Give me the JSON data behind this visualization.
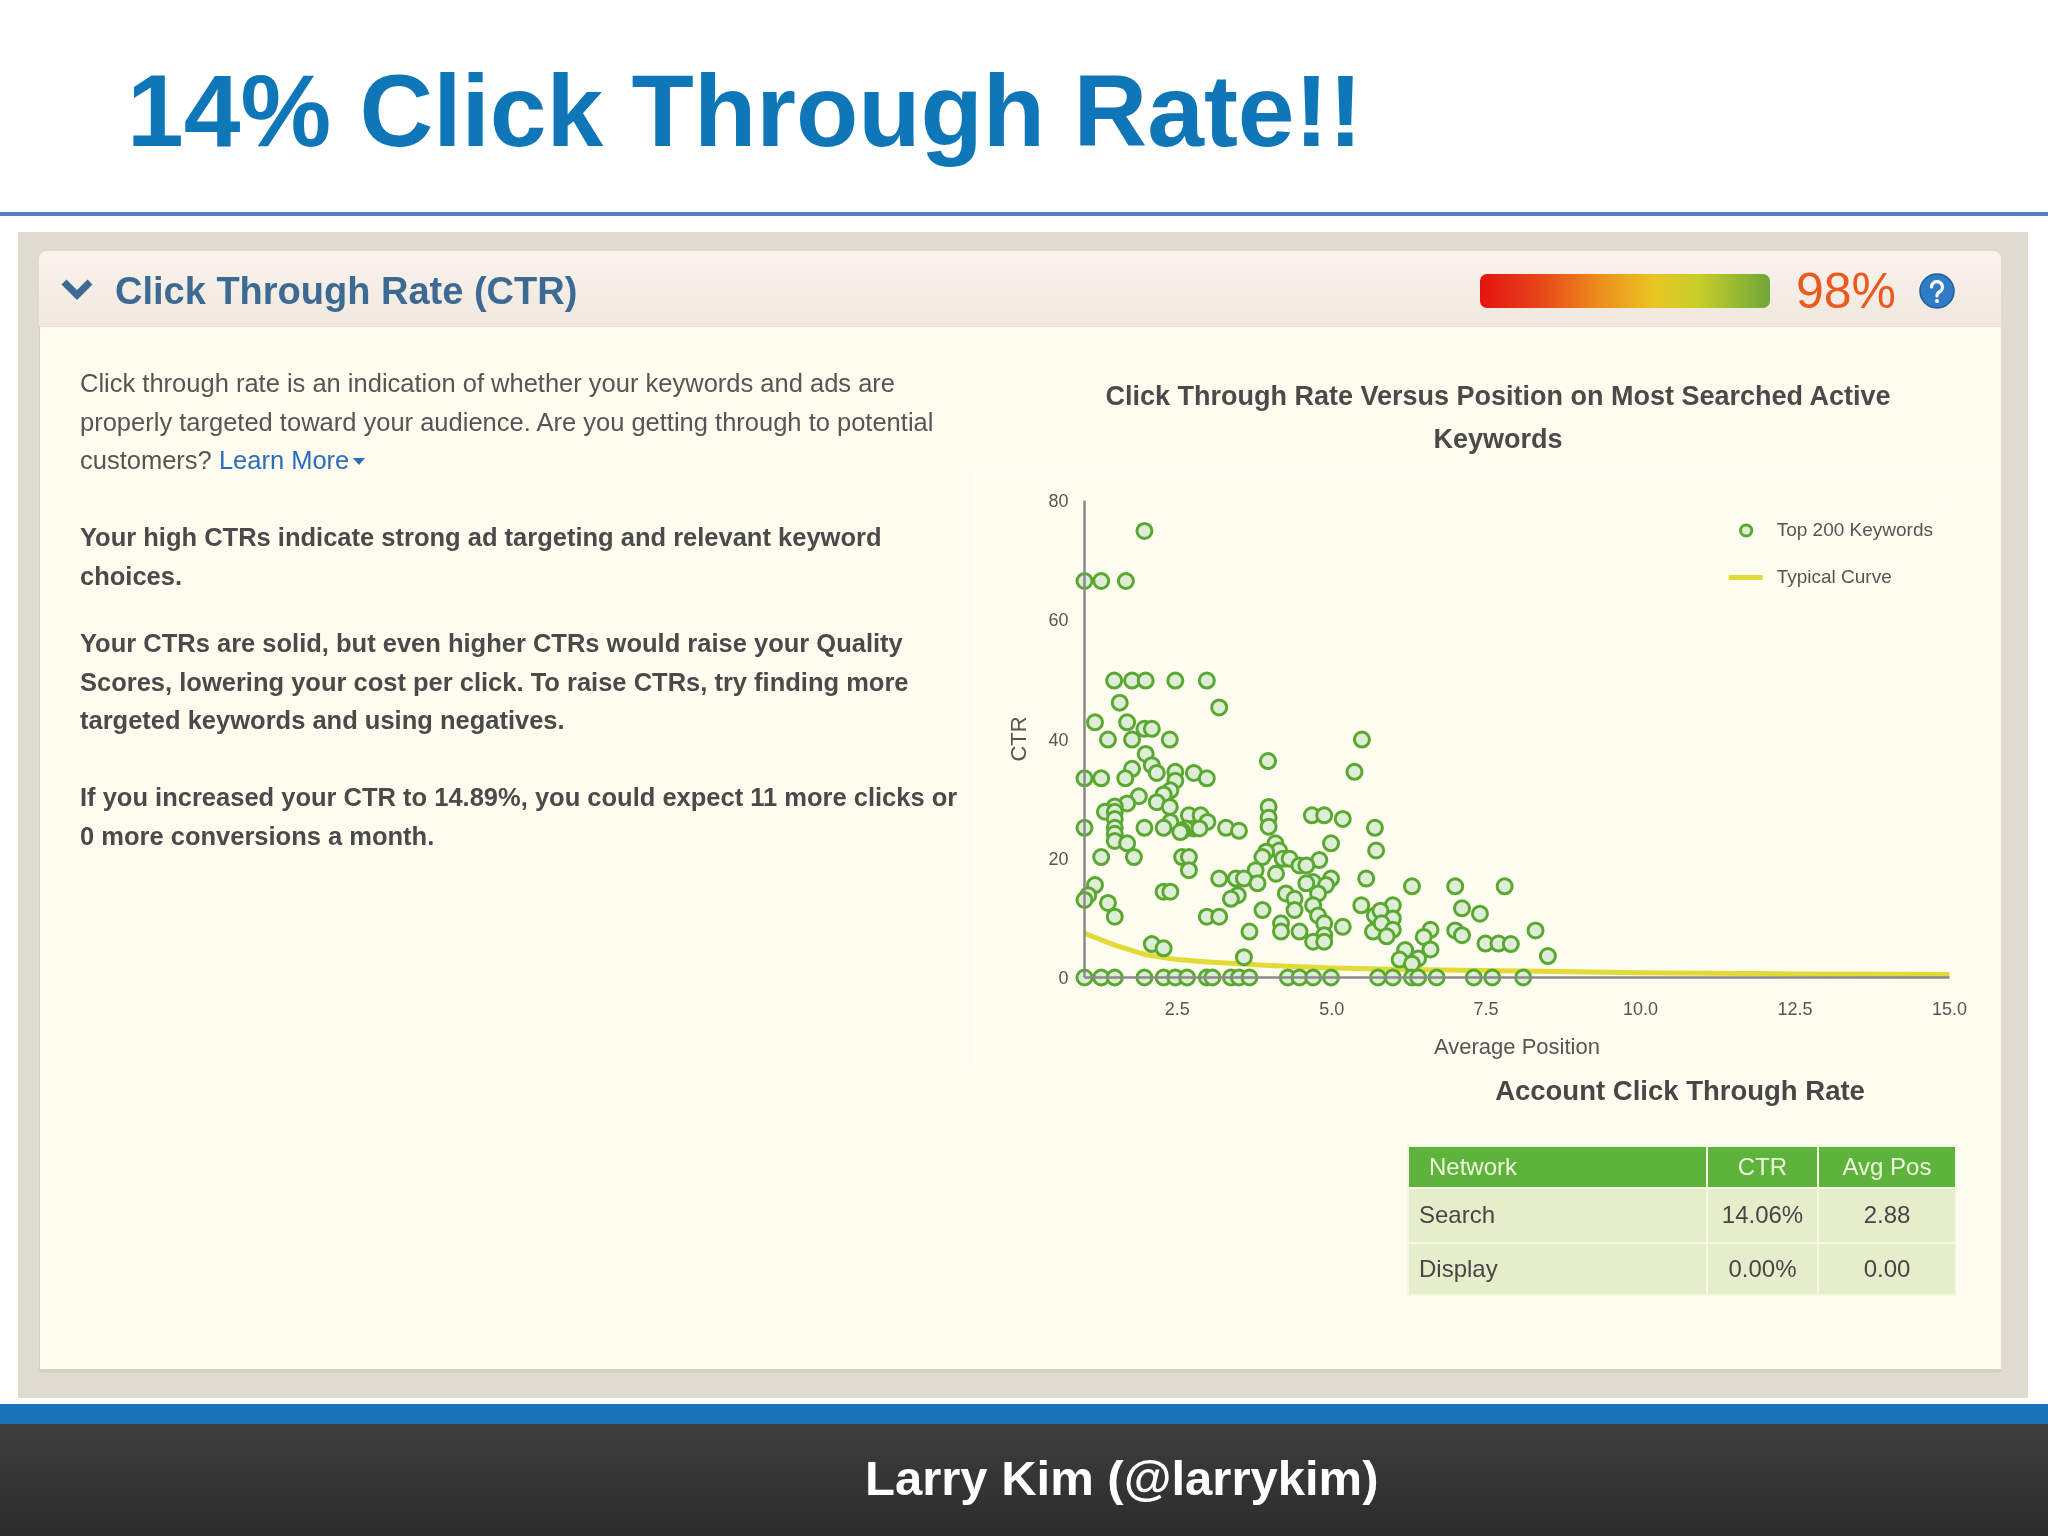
{
  "chart_data": {
    "type": "scatter",
    "title": "Click Through Rate Versus Position on Most Searched Active Keywords",
    "xlabel": "Average Position",
    "ylabel": "CTR",
    "xlim": [
      1,
      15
    ],
    "ylim": [
      0,
      80
    ],
    "xticks": [
      2.5,
      {
        "value": 5,
        "label": "5.0"
      },
      7.5,
      {
        "value": 10,
        "label": "10.0"
      },
      12.5,
      {
        "value": 15,
        "label": "15.0"
      }
    ],
    "yticks": [
      0,
      20,
      40,
      60,
      80
    ],
    "grid": false,
    "legend": "top right",
    "series": [
      {
        "name": "Top 200 Keywords",
        "color": "#5aa832",
        "marker": "circle",
        "x": [
          1.97,
          1.0,
          1.27,
          1.67,
          1.48,
          1.77,
          1.99,
          2.47,
          2.98,
          1.57,
          3.18,
          1.17,
          1.69,
          1.97,
          2.09,
          1.38,
          1.77,
          2.38,
          5.49,
          1.99,
          3.97,
          2.09,
          1.77,
          5.37,
          2.77,
          2.17,
          2.47,
          1.0,
          1.27,
          1.66,
          2.47,
          2.98,
          2.39,
          2.28,
          1.88,
          2.17,
          1.69,
          1.49,
          2.38,
          3.98,
          1.33,
          1.49,
          2.69,
          2.88,
          4.68,
          4.88,
          3.98,
          1.49,
          5.18,
          2.39,
          2.99,
          3.98,
          1.0,
          1.49,
          1.97,
          2.28,
          3.29,
          5.7,
          2.77,
          2.64,
          2.86,
          3.5,
          2.58,
          2.55,
          1.49,
          1.49,
          4.09,
          1.69,
          4.99,
          5.72,
          4.15,
          3.94,
          1.27,
          1.8,
          2.58,
          2.69,
          3.88,
          4.21,
          4.32,
          4.8,
          4.48,
          4.59,
          2.69,
          3.77,
          4.1,
          3.18,
          3.45,
          3.58,
          4.99,
          5.56,
          4.7,
          3.8,
          4.59,
          1.17,
          4.91,
          2.28,
          2.39,
          4.26,
          4.78,
          3.48,
          1.06,
          4.4,
          3.37,
          1.0,
          1.38,
          4.7,
          5.48,
          4.4,
          3.88,
          4.78,
          5.7,
          1.49,
          2.98,
          3.18,
          4.18,
          4.88,
          5.18,
          3.67,
          4.18,
          4.48,
          5.67,
          4.88,
          4.7,
          4.88,
          2.09,
          2.28,
          3.58,
          6.3,
          7.0,
          7.8,
          5.99,
          5.79,
          5.99,
          5.81,
          5.99,
          5.89,
          7.11,
          7.4,
          7.0,
          7.11,
          6.6,
          6.49,
          6.6,
          6.19,
          6.4,
          6.1,
          6.3,
          7.49,
          7.7,
          7.9,
          8.3,
          8.5,
          1.0,
          1.27,
          1.49,
          1.97,
          2.28,
          2.47,
          2.66,
          2.98,
          3.07,
          3.37,
          3.5,
          3.67,
          4.29,
          4.48,
          4.7,
          4.99,
          5.75,
          5.99,
          6.3,
          6.4,
          6.7,
          7.3,
          7.6,
          8.1
        ],
        "values": [
          74.9,
          66.5,
          66.5,
          66.5,
          49.8,
          49.8,
          49.8,
          49.8,
          49.8,
          46.1,
          45.3,
          42.8,
          42.8,
          41.7,
          41.7,
          39.9,
          39.9,
          39.9,
          39.9,
          37.5,
          36.3,
          35.6,
          35.0,
          34.5,
          34.3,
          34.3,
          34.5,
          33.4,
          33.4,
          33.4,
          33.0,
          33.4,
          31.4,
          30.7,
          30.4,
          29.4,
          29.2,
          28.7,
          28.6,
          28.6,
          27.8,
          27.8,
          27.2,
          27.2,
          27.2,
          27.2,
          26.8,
          26.6,
          26.6,
          26.1,
          26.1,
          25.3,
          25.1,
          25.1,
          25.1,
          25.1,
          25.1,
          25.1,
          25.0,
          25.0,
          25.0,
          24.6,
          24.6,
          24.4,
          24.1,
          22.9,
          22.5,
          22.5,
          22.5,
          21.3,
          21.3,
          21.1,
          20.2,
          20.2,
          20.2,
          20.2,
          20.2,
          19.9,
          19.9,
          19.7,
          18.8,
          18.8,
          18.0,
          18.0,
          17.4,
          16.6,
          16.6,
          16.6,
          16.6,
          16.6,
          16.0,
          15.8,
          15.8,
          15.5,
          15.5,
          14.4,
          14.4,
          14.1,
          14.1,
          13.8,
          13.8,
          13.2,
          13.2,
          13.0,
          12.5,
          12.1,
          12.1,
          11.3,
          11.3,
          10.4,
          10.4,
          10.2,
          10.2,
          10.2,
          9.1,
          9.1,
          8.5,
          7.7,
          7.7,
          7.7,
          7.7,
          7.1,
          6.0,
          6.0,
          5.6,
          4.9,
          3.4,
          15.3,
          15.3,
          15.3,
          12.1,
          11.2,
          9.9,
          9.1,
          8.0,
          6.9,
          11.6,
          10.7,
          7.9,
          7.1,
          8.0,
          6.8,
          4.7,
          4.6,
          3.2,
          3.0,
          2.3,
          5.7,
          5.7,
          5.6,
          7.9,
          3.6,
          0,
          0,
          0,
          0,
          0,
          0,
          0,
          0,
          0,
          0,
          0,
          0,
          0,
          0,
          0,
          0,
          0,
          0,
          0,
          0,
          0,
          0,
          0,
          0
        ]
      },
      {
        "name": "Typical Curve",
        "type": "line",
        "color": "#e2da36",
        "marker": "none",
        "x": [
          1,
          1.5,
          2,
          2.5,
          3,
          4,
          5,
          6,
          8,
          10,
          12.5,
          15
        ],
        "values": [
          7.4,
          5.4,
          3.8,
          3.0,
          2.6,
          2.0,
          1.6,
          1.4,
          1.1,
          0.8,
          0.6,
          0.5
        ]
      }
    ],
    "annotations": [
      "14% Click Through Rate!!",
      "Click Through Rate (CTR)",
      "98%",
      "Click through rate is an indication of whether your keywords and ads are properly targeted toward your audience. Are you getting through to potential customers?",
      "Learn More",
      "Your high CTRs indicate strong ad targeting and relevant keyword choices.",
      "Your CTRs are solid, but even higher CTRs would raise your Quality Scores, lowering your cost per click. To raise CTRs, try finding more targeted keywords and using negatives.",
      "If you increased your CTR to 14.89%, you could expect 11 more clicks or 0 more conversions a month.",
      "Account Click Through Rate",
      "Network",
      "CTR",
      "Avg Pos",
      "Search",
      "14.06%",
      "2.88",
      "Display",
      "0.00%",
      "0.00",
      "Larry Kim (@larrykim)"
    ]
  }
}
